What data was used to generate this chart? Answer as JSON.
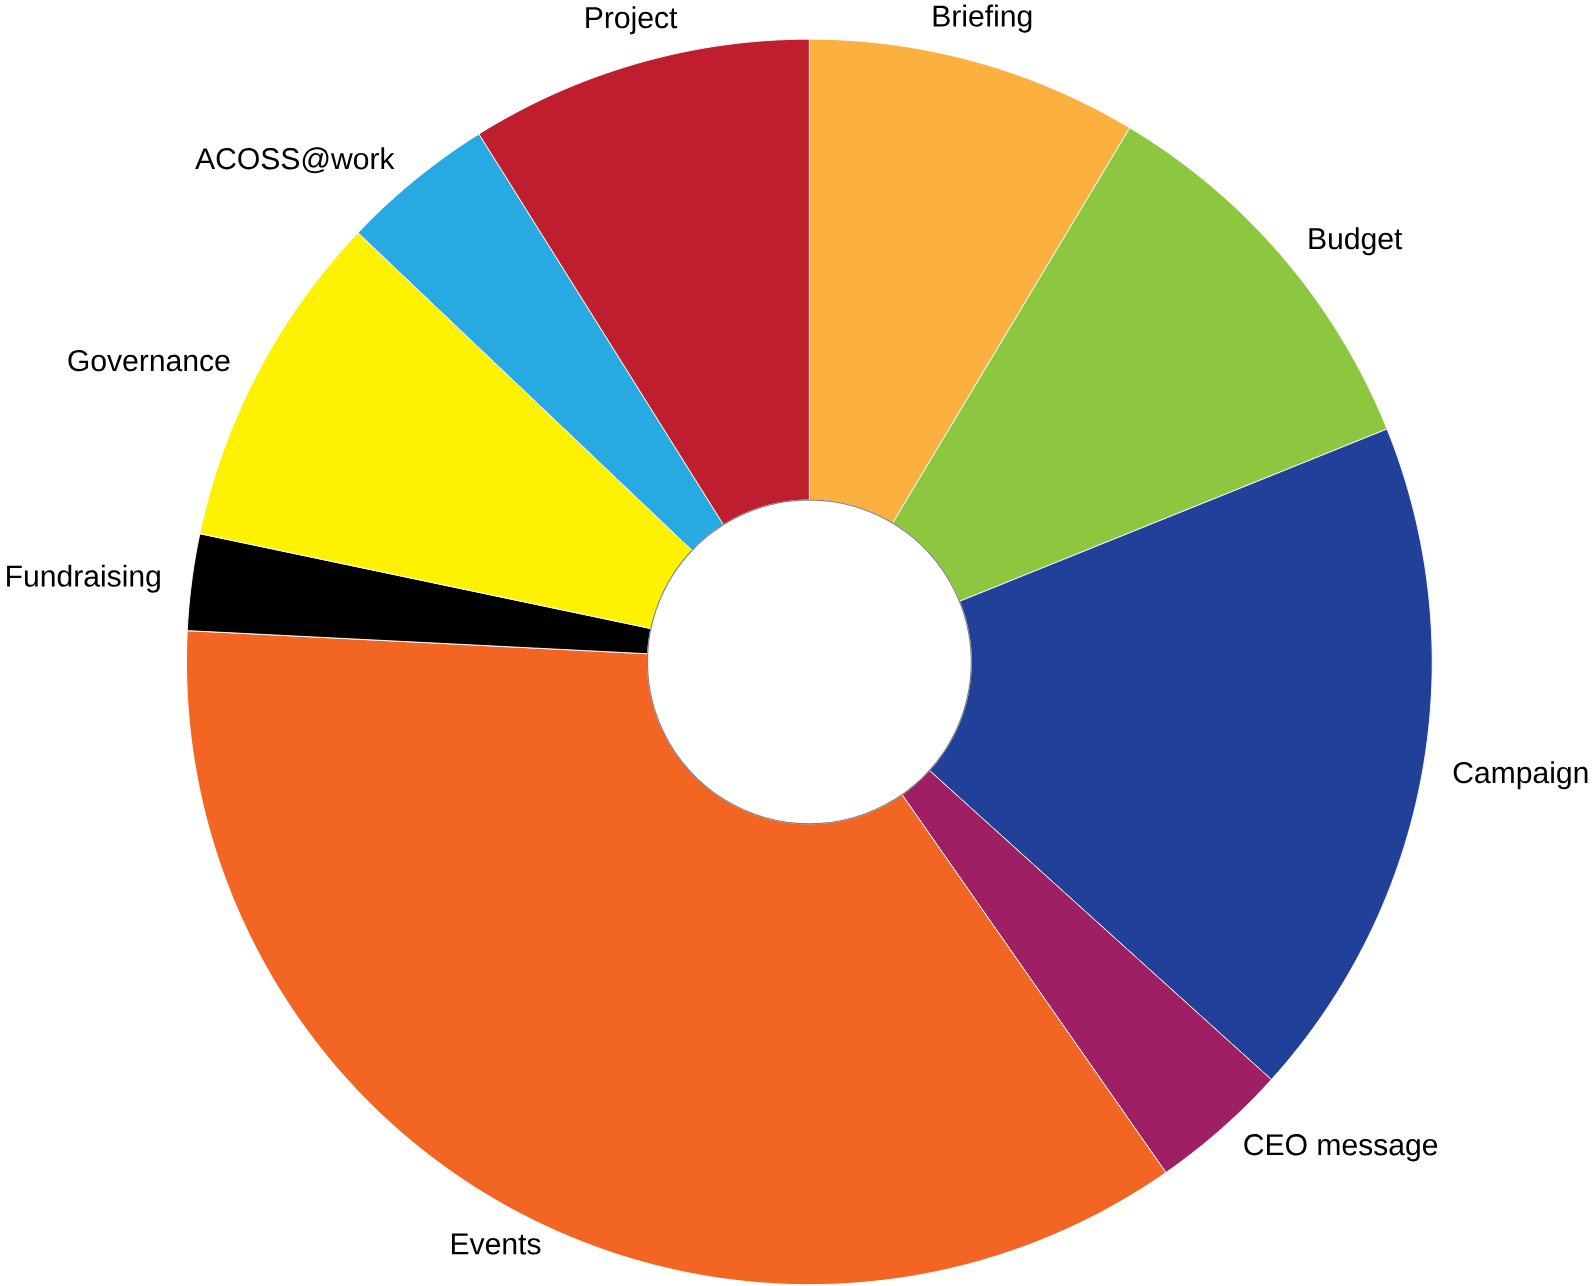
{
  "chart_data": {
    "type": "donut",
    "categories": [
      "Briefing",
      "Budget",
      "Campaign",
      "CEO message",
      "Events",
      "Fundraising",
      "Governance",
      "ACOSS@work",
      "Project"
    ],
    "values": [
      8.6,
      10.3,
      17.8,
      3.6,
      35.5,
      2.5,
      8.8,
      4.0,
      8.9
    ],
    "colors": [
      "#fbb040",
      "#8dc63f",
      "#21409a",
      "#9e1f63",
      "#f26522",
      "#000000",
      "#fff200",
      "#27aae1",
      "#be1e2d"
    ]
  }
}
